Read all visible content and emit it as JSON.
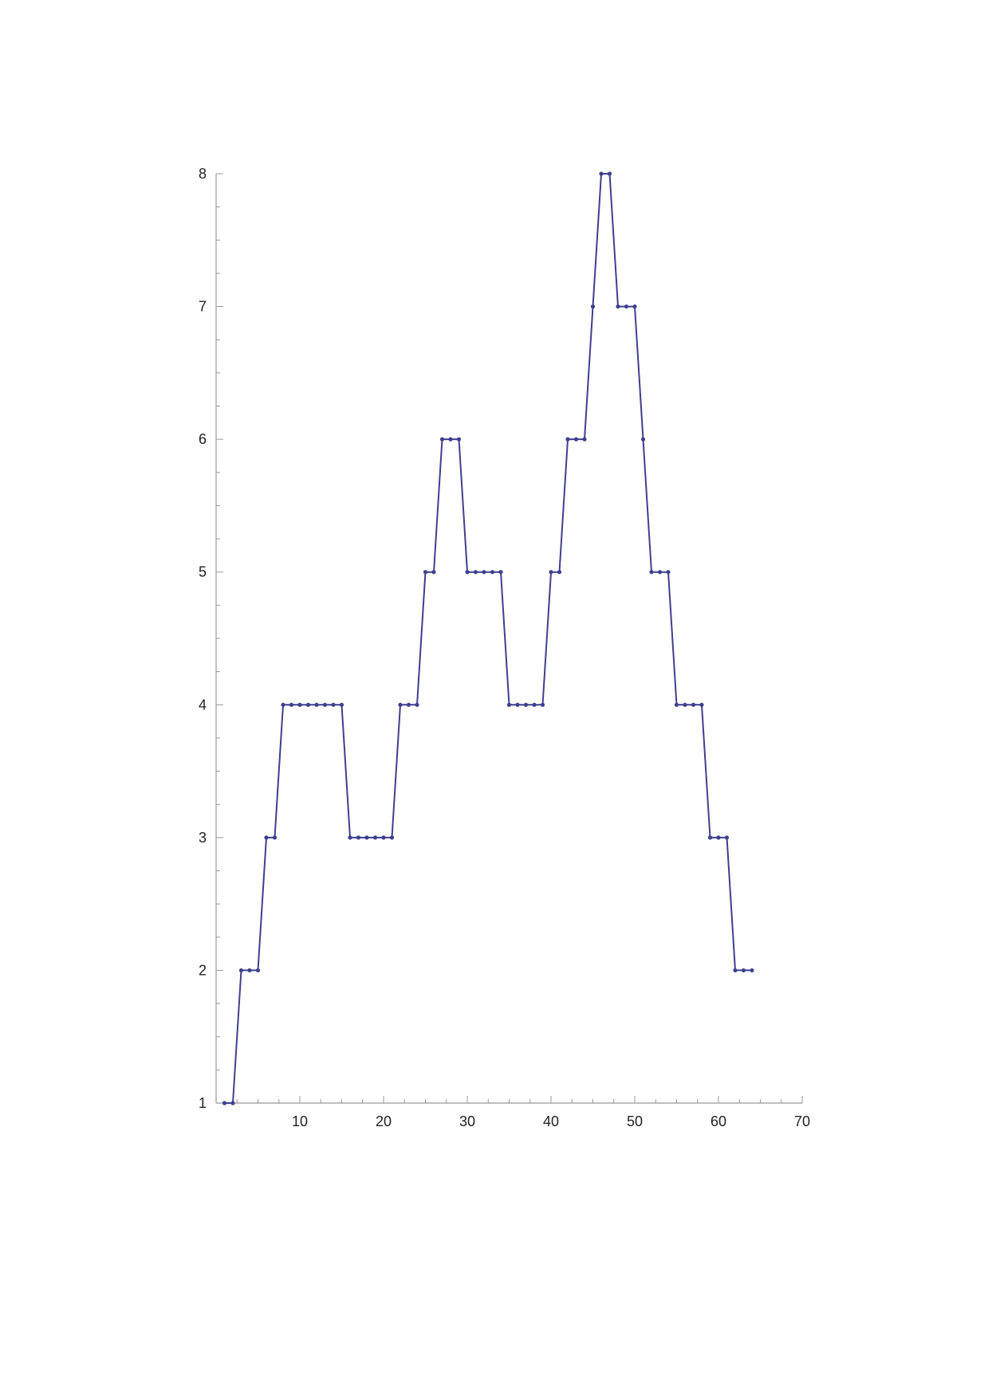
{
  "chart_data": {
    "type": "line",
    "title": "",
    "xlabel": "",
    "ylabel": "",
    "xlim": [
      0,
      70
    ],
    "ylim": [
      1,
      8
    ],
    "x_ticks": [
      10,
      20,
      30,
      40,
      50,
      60,
      70
    ],
    "y_ticks": [
      1,
      2,
      3,
      4,
      5,
      6,
      7,
      8
    ],
    "grid": false,
    "legend": "none",
    "markers": true,
    "color": "#3f3f8f",
    "series": [
      {
        "x": [
          1,
          2,
          3,
          4,
          5,
          6,
          7,
          8,
          9,
          10,
          11,
          12,
          13,
          14,
          15,
          16,
          17,
          18,
          19,
          20,
          21,
          22,
          23,
          24,
          25,
          26,
          27,
          28,
          29,
          30,
          31,
          32,
          33,
          34,
          35,
          36,
          37,
          38,
          39,
          40,
          41,
          42,
          43,
          44,
          45,
          46,
          47,
          48,
          49,
          50,
          51,
          52,
          53,
          54,
          55,
          56,
          57,
          58,
          59,
          60,
          61,
          62,
          63,
          64
        ],
        "values": [
          1,
          1,
          2,
          2,
          2,
          3,
          3,
          4,
          4,
          4,
          4,
          4,
          4,
          4,
          4,
          3,
          3,
          3,
          3,
          3,
          3,
          4,
          4,
          4,
          5,
          5,
          6,
          6,
          6,
          5,
          5,
          5,
          5,
          5,
          4,
          4,
          4,
          4,
          4,
          5,
          5,
          6,
          6,
          6,
          7,
          8,
          8,
          7,
          7,
          7,
          6,
          5,
          5,
          5,
          4,
          4,
          4,
          4,
          3,
          3,
          3,
          2,
          2,
          2
        ]
      }
    ]
  }
}
